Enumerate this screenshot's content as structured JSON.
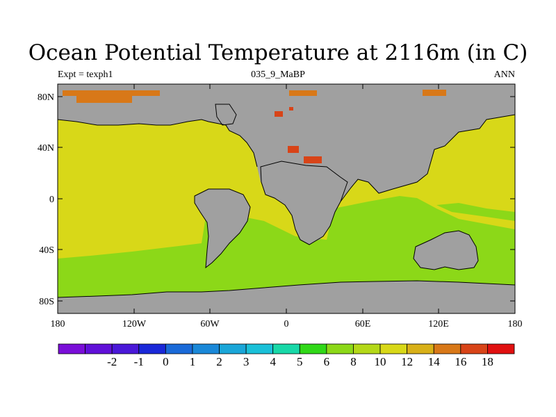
{
  "title": "Ocean Potential Temperature at 2116m (in C)",
  "subtitle_left": "Expt = texph1",
  "subtitle_center": "035_9_MaBP",
  "subtitle_right": "ANN",
  "land_color": "#a0a0a0",
  "x_ticks": [
    "180",
    "120W",
    "60W",
    "0",
    "60E",
    "120E",
    "180"
  ],
  "y_ticks": [
    "80N",
    "40N",
    "0",
    "40S",
    "80S"
  ],
  "colorbar": {
    "colors": [
      "#7a0ed8",
      "#6010d8",
      "#4a18d8",
      "#1a28d8",
      "#1a6ad8",
      "#1a88d8",
      "#1aa6d8",
      "#1ac0d8",
      "#18d8a8",
      "#30d818",
      "#8cd818",
      "#b4d818",
      "#d8d818",
      "#d8b018",
      "#d87818",
      "#d84418",
      "#e01010"
    ],
    "labels": [
      "-2",
      "-1",
      "0",
      "1",
      "2",
      "3",
      "4",
      "5",
      "6",
      "8",
      "10",
      "12",
      "14",
      "16",
      "18"
    ]
  },
  "map_palette": {
    "t10_12": "#d8d818",
    "t8_10": "#8cd818",
    "t14_16": "#d87818",
    "t16_18": "#d84418"
  }
}
